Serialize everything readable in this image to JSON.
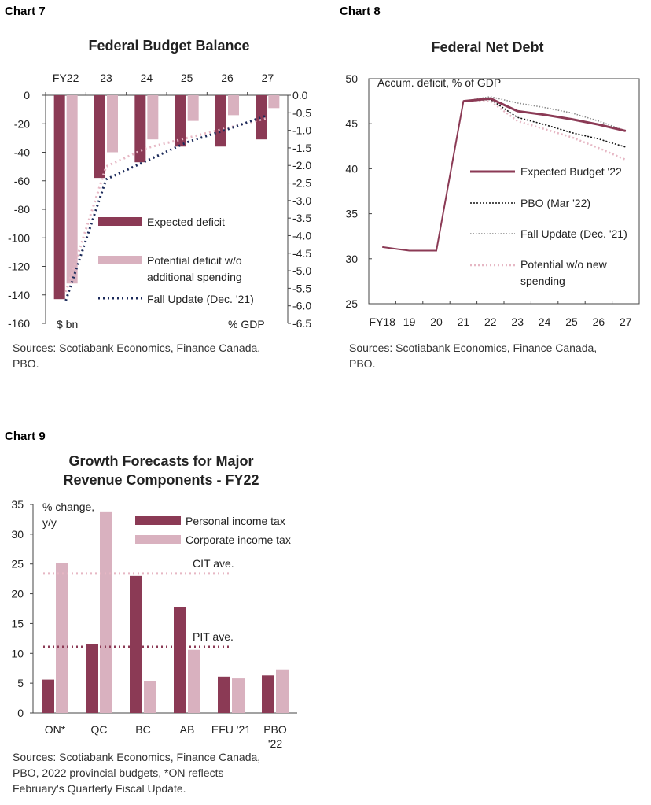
{
  "colors": {
    "maroon": "#8b3a55",
    "pink": "#d9b1bf",
    "navy": "#1b2a5a",
    "light_pink": "#e6b7c4",
    "gray": "#8a8a8a",
    "black": "#111111"
  },
  "chart_data": [
    {
      "label": "Chart 7",
      "type": "bar",
      "title": "Federal Budget Balance",
      "categories": [
        "FY22",
        "23",
        "24",
        "25",
        "26",
        "27"
      ],
      "ylim": [
        -160,
        0
      ],
      "yticks": [
        0,
        -20,
        -40,
        -60,
        -80,
        -100,
        -120,
        -140,
        -160
      ],
      "y2lim": [
        -6.5,
        0
      ],
      "y2ticks": [
        "0.0",
        "-0.5",
        "-1.0",
        "-1.5",
        "-2.0",
        "-2.5",
        "-3.0",
        "-3.5",
        "-4.0",
        "-4.5",
        "-5.0",
        "-5.5",
        "-6.0",
        "-6.5"
      ],
      "left_unit": "$ bn",
      "right_unit": "% GDP",
      "series": [
        {
          "name": "Expected deficit",
          "kind": "bar",
          "values": [
            -143,
            -58,
            -47,
            -36,
            -36,
            -31
          ]
        },
        {
          "name": "Potential deficit w/o additional spending",
          "kind": "bar",
          "values": [
            -132,
            -40,
            -31,
            -18,
            -14,
            -9
          ]
        },
        {
          "name": "Fall Update (Dec. '21)",
          "kind": "line",
          "values": [
            -144,
            -59,
            -46,
            -33,
            -24,
            -14
          ]
        },
        {
          "name": "",
          "kind": "line",
          "values": [
            -138,
            -50,
            -37,
            -30,
            -23,
            -16
          ]
        }
      ],
      "legend": [
        "Expected deficit",
        "Potential deficit w/o additional spending",
        "Fall Update (Dec. '21)"
      ],
      "sources": [
        "Sources: Scotiabank Economics, Finance Canada,",
        "PBO."
      ]
    },
    {
      "label": "Chart 8",
      "type": "line",
      "title": "Federal Net Debt",
      "ylabel": "Accum. deficit, % of GDP",
      "x": [
        "FY18",
        "19",
        "20",
        "21",
        "22",
        "23",
        "24",
        "25",
        "26",
        "27"
      ],
      "ylim": [
        25,
        50
      ],
      "yticks": [
        50,
        45,
        40,
        35,
        30,
        25
      ],
      "series": [
        {
          "name": "Expected Budget '22",
          "values": [
            31.3,
            30.9,
            30.9,
            47.5,
            47.8,
            46.4,
            46.0,
            45.5,
            44.9,
            44.2
          ]
        },
        {
          "name": "PBO (Mar '22)",
          "values": [
            null,
            null,
            null,
            47.5,
            47.7,
            45.7,
            44.9,
            44.0,
            43.3,
            42.4
          ]
        },
        {
          "name": "Fall Update (Dec. '21)",
          "values": [
            null,
            null,
            null,
            47.5,
            48.0,
            47.3,
            46.8,
            46.2,
            45.3,
            44.2
          ]
        },
        {
          "name": "Potential w/o new spending",
          "values": [
            null,
            null,
            null,
            47.5,
            47.5,
            45.3,
            44.4,
            43.5,
            42.3,
            41.0
          ]
        }
      ],
      "legend": [
        "Expected Budget '22",
        "PBO (Mar '22)",
        "Fall Update (Dec. '21)",
        "Potential w/o new spending"
      ],
      "sources": [
        "Sources: Scotiabank Economics, Finance Canada,",
        "PBO."
      ]
    },
    {
      "label": "Chart 9",
      "type": "bar",
      "title": [
        "Growth Forecasts for Major",
        "Revenue Components - FY22"
      ],
      "ylabel": [
        "% change,",
        "y/y"
      ],
      "categories": [
        "ON*",
        "QC",
        "BC",
        "AB",
        "EFU '21",
        "PBO"
      ],
      "category_line2": [
        "",
        "",
        "",
        "",
        "",
        "'22"
      ],
      "ylim": [
        0,
        35
      ],
      "yticks": [
        35,
        30,
        25,
        20,
        15,
        10,
        5,
        0
      ],
      "series": [
        {
          "name": "Personal income tax",
          "values": [
            5.6,
            11.6,
            23.0,
            17.7,
            6.1,
            6.3
          ]
        },
        {
          "name": "Corporate income tax",
          "values": [
            25.1,
            33.7,
            5.3,
            10.6,
            5.8,
            7.3
          ]
        }
      ],
      "references": [
        {
          "name": "CIT ave.",
          "value": 23.4
        },
        {
          "name": "PIT ave.",
          "value": 11.1
        }
      ],
      "legend": [
        "Personal income tax",
        "Corporate income tax"
      ],
      "sources": [
        "Sources: Scotiabank Economics, Finance Canada,",
        "PBO, 2022 provincial budgets, *ON reflects",
        "February's Quarterly Fiscal Update."
      ]
    }
  ]
}
